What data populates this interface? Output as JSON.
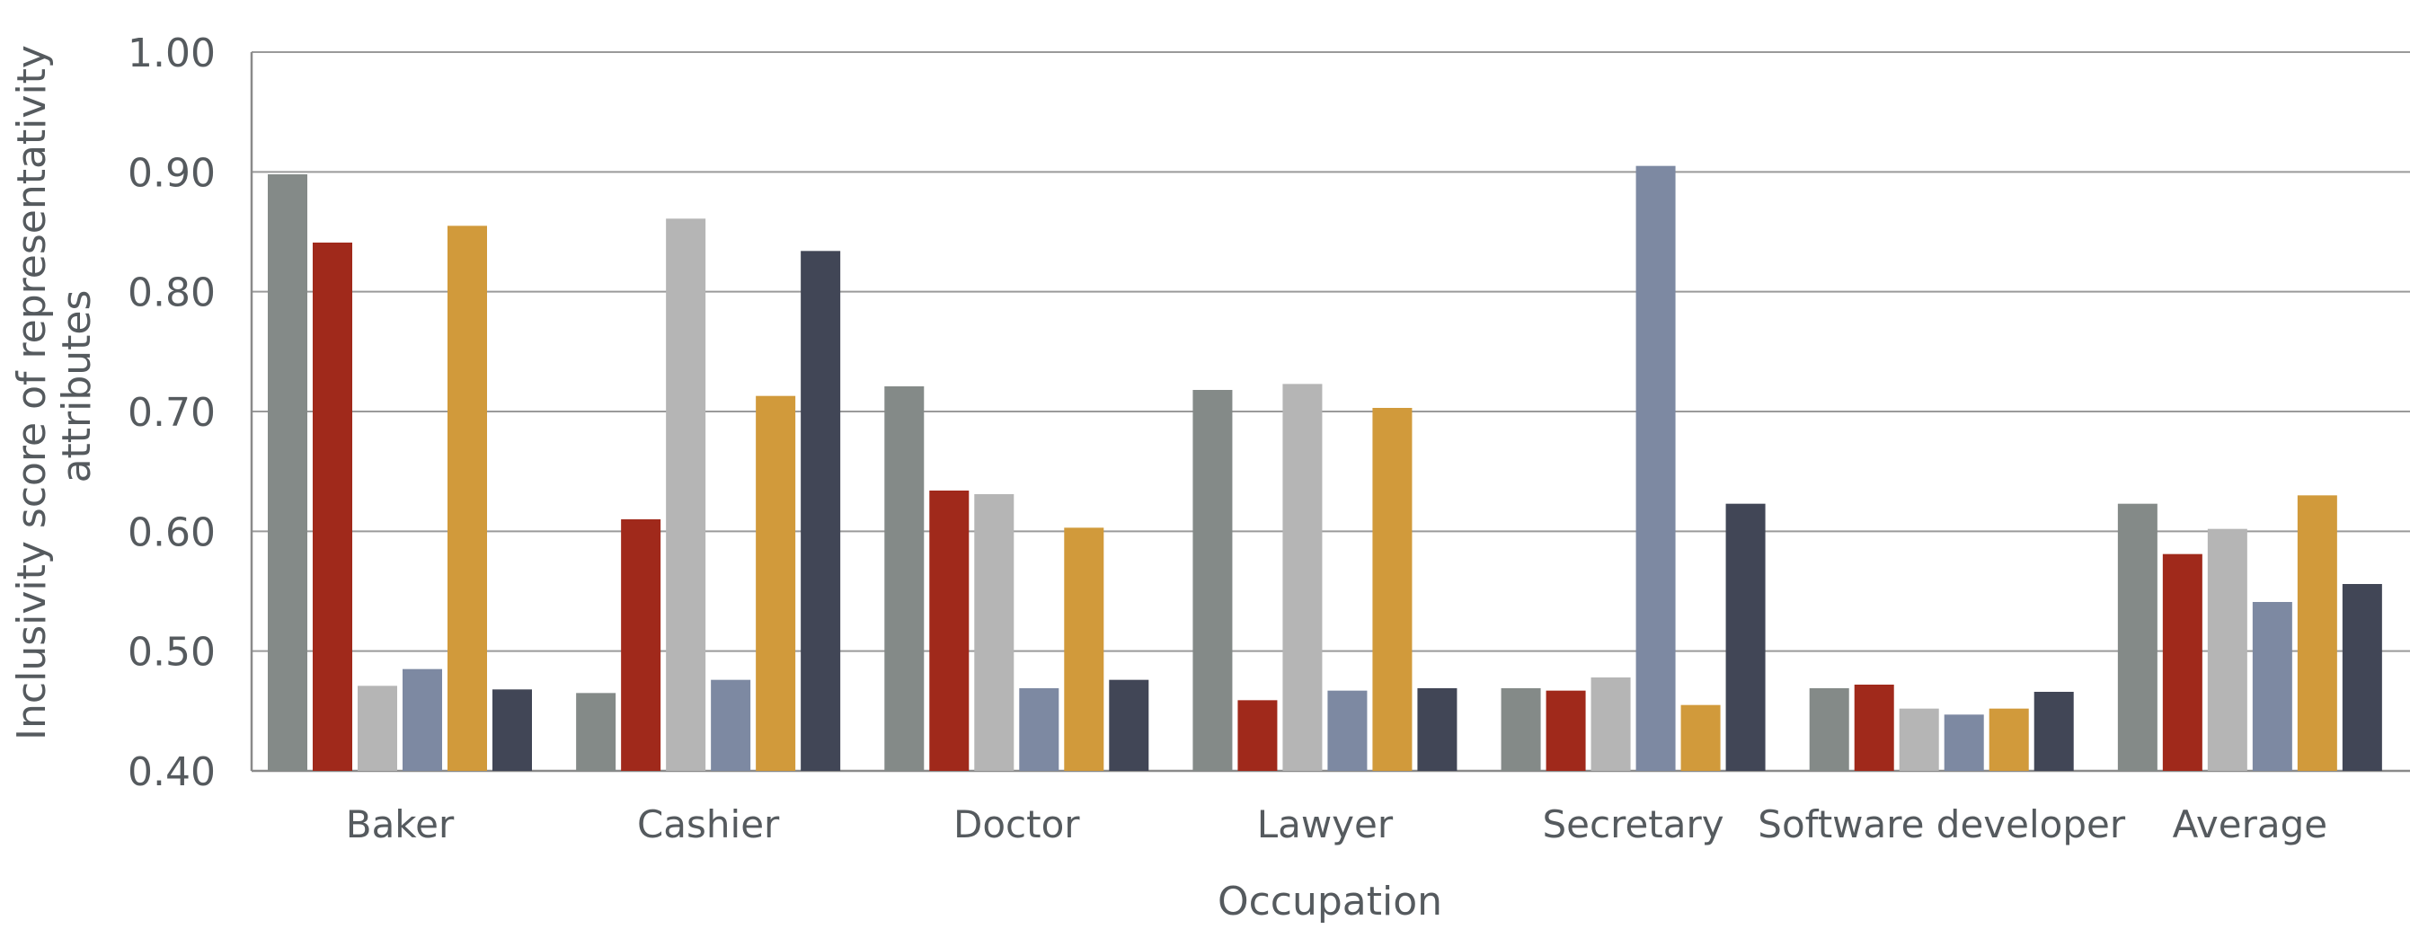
{
  "chart_data": {
    "type": "bar",
    "categories": [
      "Baker",
      "Cashier",
      "Doctor",
      "Lawyer",
      "Secretary",
      "Software developer",
      "Average"
    ],
    "series": [
      {
        "color": "#848a88",
        "values": [
          0.898,
          0.465,
          0.721,
          0.718,
          0.469,
          0.469,
          0.623
        ]
      },
      {
        "color": "#a0291b",
        "values": [
          0.841,
          0.61,
          0.634,
          0.459,
          0.467,
          0.472,
          0.581
        ]
      },
      {
        "color": "#b5b5b5",
        "values": [
          0.471,
          0.861,
          0.631,
          0.723,
          0.478,
          0.452,
          0.602
        ]
      },
      {
        "color": "#7d89a2",
        "values": [
          0.485,
          0.476,
          0.469,
          0.467,
          0.905,
          0.447,
          0.541
        ]
      },
      {
        "color": "#d19a3b",
        "values": [
          0.855,
          0.713,
          0.603,
          0.703,
          0.455,
          0.452,
          0.63
        ]
      },
      {
        "color": "#414656",
        "values": [
          0.468,
          0.834,
          0.476,
          0.469,
          0.623,
          0.466,
          0.556
        ]
      }
    ],
    "yticks": [
      "0.40",
      "0.50",
      "0.60",
      "0.70",
      "0.80",
      "0.90",
      "1.00"
    ],
    "ylim": [
      0.4,
      1.0
    ],
    "xlabel": "Occupation",
    "ylabel_line1": "Inclusivity score of representativity",
    "ylabel_line2": "attributes",
    "grid": true,
    "legend": "none"
  }
}
